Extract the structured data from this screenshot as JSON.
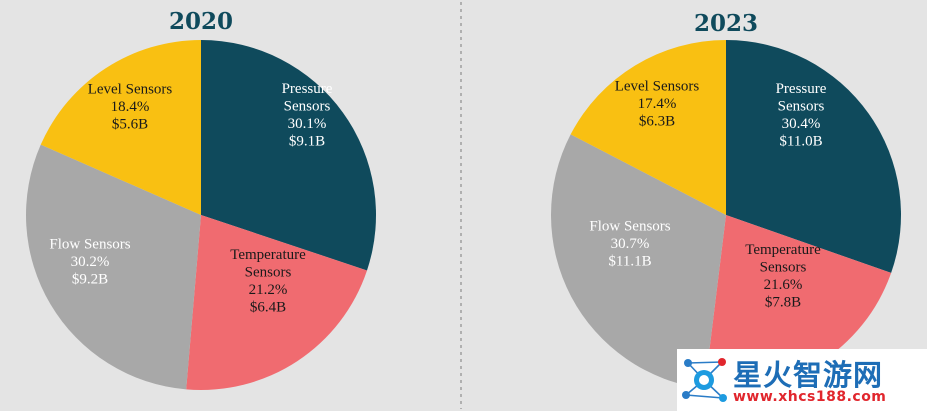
{
  "colors": {
    "background": "#e4e4e4",
    "pressure": "#0f4a5c",
    "temperature": "#f06b70",
    "flow": "#a8a8a8",
    "level": "#f9c012",
    "title": "#0f4a5c"
  },
  "chart_data": [
    {
      "type": "pie",
      "title": "2020",
      "slices": [
        {
          "name": "Pressure Sensors",
          "percent": 30.1,
          "value": 9.1,
          "percent_label": "30.1%",
          "value_label": "$9.1B",
          "color": "#0f4a5c",
          "text_color": "#ffffff"
        },
        {
          "name": "Temperature Sensors",
          "percent": 21.2,
          "value": 6.4,
          "percent_label": "21.2%",
          "value_label": "$6.4B",
          "color": "#f06b70",
          "text_color": "#1a1a1a"
        },
        {
          "name": "Flow Sensors",
          "percent": 30.2,
          "value": 9.2,
          "percent_label": "30.2%",
          "value_label": "$9.2B",
          "color": "#a8a8a8",
          "text_color": "#ffffff"
        },
        {
          "name": "Level Sensors",
          "percent": 18.4,
          "value": 5.6,
          "percent_label": "18.4%",
          "value_label": "$5.6B",
          "color": "#f9c012",
          "text_color": "#1a1a1a"
        }
      ]
    },
    {
      "type": "pie",
      "title": "2023",
      "slices": [
        {
          "name": "Pressure Sensors",
          "percent": 30.4,
          "value": 11.0,
          "percent_label": "30.4%",
          "value_label": "$11.0B",
          "color": "#0f4a5c",
          "text_color": "#ffffff"
        },
        {
          "name": "Temperature Sensors",
          "percent": 21.6,
          "value": 7.8,
          "percent_label": "21.6%",
          "value_label": "$7.8B",
          "color": "#f06b70",
          "text_color": "#1a1a1a"
        },
        {
          "name": "Flow Sensors",
          "percent": 30.7,
          "value": 11.1,
          "percent_label": "30.7%",
          "value_label": "$11.1B",
          "color": "#a8a8a8",
          "text_color": "#ffffff"
        },
        {
          "name": "Level Sensors",
          "percent": 17.4,
          "value": 6.3,
          "percent_label": "17.4%",
          "value_label": "$6.3B",
          "color": "#f9c012",
          "text_color": "#1a1a1a"
        }
      ]
    }
  ],
  "watermark": {
    "text": "星火智游网",
    "url": "www.xhcs188.com"
  }
}
